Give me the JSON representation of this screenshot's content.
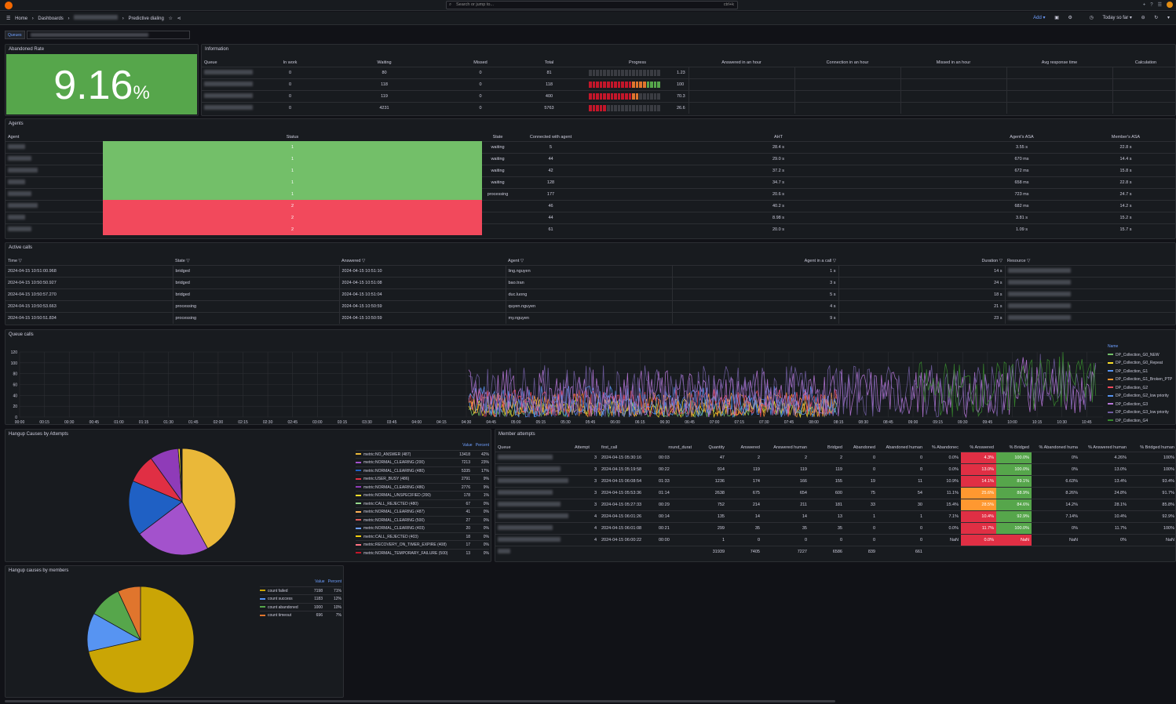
{
  "topbar": {
    "search_placeholder": "Search or jump to...",
    "search_kbd": "ctrl+k",
    "icons": [
      "plus-icon",
      "help-icon",
      "rss-icon"
    ]
  },
  "breadcrumb": {
    "home": "Home",
    "dashboards": "Dashboards",
    "current": "Predictive dialing",
    "sep": "›"
  },
  "navbar": {
    "add_label": "Add",
    "time_range": "Today so far",
    "icons": [
      "save-icon",
      "settings-icon",
      "clock-icon",
      "zoom-out-icon",
      "refresh-icon"
    ]
  },
  "variables": {
    "queues_label": "Queues"
  },
  "abandoned": {
    "title": "Abandoned Rate",
    "value": "9.16",
    "unit": "%",
    "color": "#56a64b"
  },
  "information": {
    "title": "Information",
    "columns": [
      "Queue",
      "In work",
      "Waiting",
      "Missed",
      "Total",
      "Progress",
      "Answered in an hour",
      "Connection in an hour",
      "Missed in an hour",
      "Avg response time",
      "Calculation"
    ],
    "rows": [
      {
        "in_work": "0",
        "waiting": "80",
        "missed": "0",
        "total": "81",
        "progress": "1.23",
        "progress_value": 1.23
      },
      {
        "in_work": "0",
        "waiting": "118",
        "missed": "0",
        "total": "118",
        "progress": "100",
        "progress_value": 100
      },
      {
        "in_work": "0",
        "waiting": "119",
        "missed": "0",
        "total": "400",
        "progress": "70.3",
        "progress_value": 70.3
      },
      {
        "in_work": "0",
        "waiting": "4231",
        "missed": "0",
        "total": "5763",
        "progress": "26.6",
        "progress_value": 26.6
      }
    ]
  },
  "agents": {
    "title": "Agents",
    "columns": [
      "Agent",
      "Status",
      "State",
      "Connected with agent",
      "AHT",
      "Agent's ASA",
      "Member's ASA"
    ],
    "rows": [
      {
        "status": "1",
        "state": "waiting",
        "connected": "5",
        "aht": "28.4 s",
        "agent_asa": "3.55 s",
        "member_asa": "22.8 s"
      },
      {
        "status": "1",
        "state": "waiting",
        "connected": "44",
        "aht": "29.0 s",
        "agent_asa": "670 ms",
        "member_asa": "14.4 s"
      },
      {
        "status": "1",
        "state": "waiting",
        "connected": "42",
        "aht": "37.2 s",
        "agent_asa": "672 ms",
        "member_asa": "15.8 s"
      },
      {
        "status": "1",
        "state": "waiting",
        "connected": "128",
        "aht": "34.7 s",
        "agent_asa": "658 ms",
        "member_asa": "22.8 s"
      },
      {
        "status": "1",
        "state": "processing",
        "connected": "177",
        "aht": "20.6 s",
        "agent_asa": "723 ms",
        "member_asa": "24.7 s"
      },
      {
        "status": "2",
        "state": "",
        "connected": "46",
        "aht": "40.2 s",
        "agent_asa": "682 ms",
        "member_asa": "14.2 s"
      },
      {
        "status": "2",
        "state": "",
        "connected": "44",
        "aht": "8.98 s",
        "agent_asa": "3.81 s",
        "member_asa": "15.2 s"
      },
      {
        "status": "2",
        "state": "",
        "connected": "61",
        "aht": "20.0 s",
        "agent_asa": "1.09 s",
        "member_asa": "15.7 s"
      }
    ],
    "status_colors": {
      "1": "#73bf69",
      "2": "#f2495c"
    }
  },
  "active_calls": {
    "title": "Active calls",
    "columns": [
      "Time",
      "State",
      "Answered",
      "Agent",
      "Agent in a call",
      "Duration",
      "Resource"
    ],
    "rows": [
      {
        "time": "2024-04-15 10:51:00.968",
        "state": "bridged",
        "answered": "2024-04-15 10:51:10",
        "agent": "ling.nguyen",
        "in_call": "1 s",
        "duration": "14 s"
      },
      {
        "time": "2024-04-15 10:50:50.927",
        "state": "bridged",
        "answered": "2024-04-15 10:51:08",
        "agent": "bao.tran",
        "in_call": "3 s",
        "duration": "24 s"
      },
      {
        "time": "2024-04-15 10:50:57.270",
        "state": "bridged",
        "answered": "2024-04-15 10:51:04",
        "agent": "duc.luong",
        "in_call": "5 s",
        "duration": "18 s"
      },
      {
        "time": "2024-04-15 10:50:53.663",
        "state": "processing",
        "answered": "2024-04-15 10:50:59",
        "agent": "quyen.nguyen",
        "in_call": "4 s",
        "duration": "21 s"
      },
      {
        "time": "2024-04-15 10:50:51.834",
        "state": "processing",
        "answered": "2024-04-15 10:50:59",
        "agent": "my.nguyen",
        "in_call": "9 s",
        "duration": "23 s"
      }
    ]
  },
  "queue_calls": {
    "title": "Queue calls",
    "legend_title": "Name",
    "yticks": [
      "120",
      "100",
      "80",
      "60",
      "40",
      "20",
      "0"
    ],
    "xticks": [
      "00:00",
      "00:15",
      "00:30",
      "00:45",
      "01:00",
      "01:15",
      "01:30",
      "01:45",
      "02:00",
      "02:15",
      "02:30",
      "02:45",
      "03:00",
      "03:15",
      "03:30",
      "03:45",
      "04:00",
      "04:15",
      "04:30",
      "04:45",
      "05:00",
      "05:15",
      "05:30",
      "05:45",
      "06:00",
      "06:15",
      "06:30",
      "06:45",
      "07:00",
      "07:15",
      "07:30",
      "07:45",
      "08:00",
      "08:15",
      "08:30",
      "08:45",
      "09:00",
      "09:15",
      "09:30",
      "09:45",
      "10:00",
      "10:15",
      "10:30",
      "10:45"
    ],
    "series": [
      {
        "name": "DP_Collection_G0_NEW",
        "color": "#73bf69"
      },
      {
        "name": "DP_Collection_G0_Repeat",
        "color": "#fade2a"
      },
      {
        "name": "DP_Collection_G1",
        "color": "#5794f2"
      },
      {
        "name": "DP_Collection_G1_Broken_PTP",
        "color": "#ff9830"
      },
      {
        "name": "DP_Collection_G2",
        "color": "#f2495c"
      },
      {
        "name": "DP_Collection_G2_low priority",
        "color": "#5794f2"
      },
      {
        "name": "DP_Collection_G3",
        "color": "#b877d9"
      },
      {
        "name": "DP_Collection_G3_low priority",
        "color": "#705da0"
      },
      {
        "name": "DP_Collection_G4",
        "color": "#37872d"
      }
    ]
  },
  "hangup_attempts": {
    "title": "Hangup Causes by Attempts",
    "col_value": "Value",
    "col_percent": "Percent",
    "items": [
      {
        "name": "metric:NO_ANSWER (487)",
        "value": "13418",
        "percent": "42%",
        "color": "#eab839"
      },
      {
        "name": "metric:NORMAL_CLEARING (200)",
        "value": "7213",
        "percent": "23%",
        "color": "#a352cc"
      },
      {
        "name": "metric:NORMAL_CLEARING (480)",
        "value": "5335",
        "percent": "17%",
        "color": "#1f60c4"
      },
      {
        "name": "metric:USER_BUSY (486)",
        "value": "2791",
        "percent": "9%",
        "color": "#e02f44"
      },
      {
        "name": "metric:NORMAL_CLEARING (486)",
        "value": "2776",
        "percent": "9%",
        "color": "#8f3bb8"
      },
      {
        "name": "metric:NORMAL_UNSPECIFIED (200)",
        "value": "178",
        "percent": "1%",
        "color": "#fade2a"
      },
      {
        "name": "metric:CALL_REJECTED (480)",
        "value": "67",
        "percent": "0%",
        "color": "#96d98d"
      },
      {
        "name": "metric:NORMAL_CLEARING (487)",
        "value": "41",
        "percent": "0%",
        "color": "#ffb357"
      },
      {
        "name": "metric:NORMAL_CLEARING (500)",
        "value": "27",
        "percent": "0%",
        "color": "#e05c5c"
      },
      {
        "name": "metric:NORMAL_CLEARING (403)",
        "value": "20",
        "percent": "0%",
        "color": "#6e9fff"
      },
      {
        "name": "metric:CALL_REJECTED (403)",
        "value": "18",
        "percent": "0%",
        "color": "#f2cc0c"
      },
      {
        "name": "metric:RECOVERY_ON_TIMER_EXPIRE (408)",
        "value": "17",
        "percent": "0%",
        "color": "#ff7383"
      },
      {
        "name": "metric:NORMAL_TEMPORARY_FAILURE (500)",
        "value": "13",
        "percent": "0%",
        "color": "#c4162a"
      }
    ]
  },
  "chart_data": [
    {
      "type": "pie",
      "title": "Hangup Causes by Attempts",
      "categories": [
        "metric:NO_ANSWER (487)",
        "metric:NORMAL_CLEARING (200)",
        "metric:NORMAL_CLEARING (480)",
        "metric:USER_BUSY (486)",
        "metric:NORMAL_CLEARING (486)",
        "metric:NORMAL_UNSPECIFIED (200)",
        "metric:CALL_REJECTED (480)",
        "metric:NORMAL_CLEARING (487)",
        "metric:NORMAL_CLEARING (500)",
        "metric:NORMAL_CLEARING (403)",
        "metric:CALL_REJECTED (403)",
        "metric:RECOVERY_ON_TIMER_EXPIRE (408)",
        "metric:NORMAL_TEMPORARY_FAILURE (500)"
      ],
      "values": [
        13418,
        7213,
        5335,
        2791,
        2776,
        178,
        67,
        41,
        27,
        20,
        18,
        17,
        13
      ],
      "colors": [
        "#eab839",
        "#a352cc",
        "#1f60c4",
        "#e02f44",
        "#8f3bb8",
        "#fade2a",
        "#96d98d",
        "#ffb357",
        "#e05c5c",
        "#6e9fff",
        "#f2cc0c",
        "#ff7383",
        "#c4162a"
      ]
    },
    {
      "type": "pie",
      "title": "Hangup causes by members",
      "categories": [
        "count failed",
        "count success",
        "count abandoned",
        "count timeout"
      ],
      "values": [
        7198,
        1183,
        1000,
        696
      ],
      "colors": [
        "#caa505",
        "#5794f2",
        "#56a64b",
        "#e0752d"
      ]
    }
  ],
  "hangup_members": {
    "title": "Hangup causes by members",
    "col_value": "Value",
    "col_percent": "Percent",
    "items": [
      {
        "name": "count failed",
        "value": "7198",
        "percent": "71%",
        "color": "#caa505"
      },
      {
        "name": "count success",
        "value": "1183",
        "percent": "12%",
        "color": "#5794f2"
      },
      {
        "name": "count abandoned",
        "value": "1000",
        "percent": "10%",
        "color": "#56a64b"
      },
      {
        "name": "count timeout",
        "value": "696",
        "percent": "7%",
        "color": "#e0752d"
      }
    ]
  },
  "member_attempts": {
    "title": "Member attempts",
    "columns": [
      "Queue",
      "Attempt",
      "first_call",
      "round_durat",
      "Quantity",
      "Answered",
      "Answered human",
      "Bridged",
      "Abandoned",
      "Abandoned human",
      "% Abandonec",
      "% Answered",
      "% Bridged",
      "% Abandoned huma",
      "% Answered human",
      "% Bridged human"
    ],
    "rows": [
      {
        "attempt": "3",
        "first_call": "2024-04-15 05:30:16",
        "round": "00:03",
        "quantity": "47",
        "answered": "2",
        "answered_h": "2",
        "bridged": "2",
        "abandoned": "0",
        "abandoned_h": "0",
        "p_aband": "0.0%",
        "p_ans": "4.3%",
        "p_br": "100.0%",
        "p_aband_h": "0%",
        "p_ans_h": "4.26%",
        "p_br_h": "100%",
        "ans_c": "r",
        "br_c": "g"
      },
      {
        "attempt": "3",
        "first_call": "2024-04-15 05:19:58",
        "round": "00:22",
        "quantity": "914",
        "answered": "119",
        "answered_h": "119",
        "bridged": "119",
        "abandoned": "0",
        "abandoned_h": "0",
        "p_aband": "0.0%",
        "p_ans": "13.0%",
        "p_br": "100.0%",
        "p_aband_h": "0%",
        "p_ans_h": "13.0%",
        "p_br_h": "100%",
        "ans_c": "r",
        "br_c": "g"
      },
      {
        "attempt": "3",
        "first_call": "2024-04-15 06:08:54",
        "round": "01:33",
        "quantity": "1236",
        "answered": "174",
        "answered_h": "166",
        "bridged": "155",
        "abandoned": "19",
        "abandoned_h": "11",
        "p_aband": "10.9%",
        "p_ans": "14.1%",
        "p_br": "89.1%",
        "p_aband_h": "6.63%",
        "p_ans_h": "13.4%",
        "p_br_h": "93.4%",
        "ans_c": "r",
        "br_c": "g"
      },
      {
        "attempt": "3",
        "first_call": "2024-04-15 05:53:36",
        "round": "01:14",
        "quantity": "2638",
        "answered": "675",
        "answered_h": "654",
        "bridged": "600",
        "abandoned": "75",
        "abandoned_h": "54",
        "p_aband": "11.1%",
        "p_ans": "25.6%",
        "p_br": "88.9%",
        "p_aband_h": "8.26%",
        "p_ans_h": "24.8%",
        "p_br_h": "91.7%",
        "ans_c": "o",
        "br_c": "g"
      },
      {
        "attempt": "3",
        "first_call": "2024-04-15 05:27:33",
        "round": "00:29",
        "quantity": "752",
        "answered": "214",
        "answered_h": "211",
        "bridged": "181",
        "abandoned": "33",
        "abandoned_h": "30",
        "p_aband": "15.4%",
        "p_ans": "28.5%",
        "p_br": "84.6%",
        "p_aband_h": "14.2%",
        "p_ans_h": "28.1%",
        "p_br_h": "85.8%",
        "ans_c": "o",
        "br_c": "g"
      },
      {
        "attempt": "4",
        "first_call": "2024-04-15 06:01:26",
        "round": "00:14",
        "quantity": "135",
        "answered": "14",
        "answered_h": "14",
        "bridged": "13",
        "abandoned": "1",
        "abandoned_h": "1",
        "p_aband": "7.1%",
        "p_ans": "10.4%",
        "p_br": "92.9%",
        "p_aband_h": "7.14%",
        "p_ans_h": "10.4%",
        "p_br_h": "92.9%",
        "ans_c": "r",
        "br_c": "g"
      },
      {
        "attempt": "4",
        "first_call": "2024-04-15 06:01:08",
        "round": "00:21",
        "quantity": "299",
        "answered": "35",
        "answered_h": "35",
        "bridged": "35",
        "abandoned": "0",
        "abandoned_h": "0",
        "p_aband": "0.0%",
        "p_ans": "11.7%",
        "p_br": "100.0%",
        "p_aband_h": "0%",
        "p_ans_h": "11.7%",
        "p_br_h": "100%",
        "ans_c": "r",
        "br_c": "g"
      },
      {
        "attempt": "4",
        "first_call": "2024-04-15 06:00:22",
        "round": "00:00",
        "quantity": "1",
        "answered": "0",
        "answered_h": "0",
        "bridged": "0",
        "abandoned": "0",
        "abandoned_h": "0",
        "p_aband": "NaN",
        "p_ans": "0.0%",
        "p_br": "NaN",
        "p_aband_h": "NaN",
        "p_ans_h": "0%",
        "p_br_h": "NaN",
        "ans_c": "r",
        "br_c": "r"
      }
    ],
    "totals": {
      "quantity": "31939",
      "answered": "7405",
      "answered_h": "7227",
      "bridged": "6586",
      "abandoned": "839",
      "abandoned_h": "661"
    }
  }
}
